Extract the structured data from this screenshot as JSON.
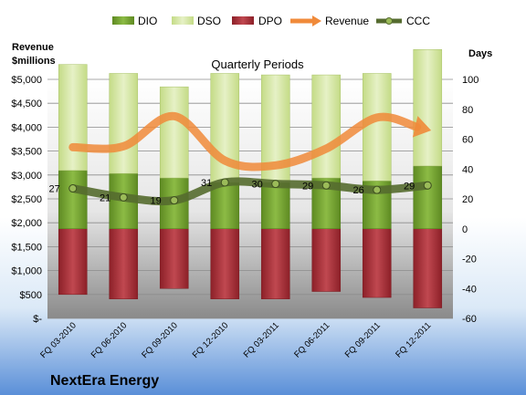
{
  "chart_data": {
    "type": "bar",
    "subtitle": "Quarterly Periods",
    "company": "NextEra Energy",
    "left_axis_title": [
      "Revenue",
      "$millions"
    ],
    "right_axis_title": "Days",
    "categories": [
      "FQ 03-2010",
      "FQ 06-2010",
      "FQ 09-2010",
      "FQ 12-2010",
      "FQ 03-2011",
      "FQ 06-2011",
      "FQ 09-2011",
      "FQ 12-2011"
    ],
    "left_ticks": [
      "$-",
      "$500",
      "$1,000",
      "$1,500",
      "$2,000",
      "$2,500",
      "$3,000",
      "$3,500",
      "$4,000",
      "$4,500",
      "$5,000"
    ],
    "left_ylim": [
      0,
      5000
    ],
    "right_ticks": [
      "-60",
      "-40",
      "-20",
      "0",
      "20",
      "40",
      "60",
      "80",
      "100"
    ],
    "right_ylim": [
      -60,
      100
    ],
    "legend": [
      "DIO",
      "DSO",
      "DPO",
      "Revenue",
      "CCC"
    ],
    "legend_position": "top",
    "series": [
      {
        "name": "DIO",
        "axis": "days",
        "values": [
          39,
          37,
          34,
          31,
          31,
          34,
          32,
          42
        ]
      },
      {
        "name": "DSO",
        "axis": "days",
        "values": [
          71,
          67,
          61,
          73,
          72,
          69,
          72,
          78
        ]
      },
      {
        "name": "DPO",
        "axis": "days",
        "values": [
          -44,
          -47,
          -40,
          -47,
          -47,
          -42,
          -46,
          -53
        ]
      },
      {
        "name": "Revenue",
        "axis": "revenue",
        "values": [
          3580,
          3600,
          4230,
          3300,
          3200,
          3550,
          4200,
          3950
        ]
      },
      {
        "name": "CCC",
        "axis": "days",
        "values": [
          27,
          21,
          19,
          31,
          30,
          29,
          26,
          29
        ]
      }
    ],
    "colors": {
      "DIO": "#6e9a2e",
      "DSO": "#d4e6a6",
      "DPO": "#a5303a",
      "Revenue": "#f08a3a",
      "CCC": "#556b2f"
    },
    "grid": true
  }
}
